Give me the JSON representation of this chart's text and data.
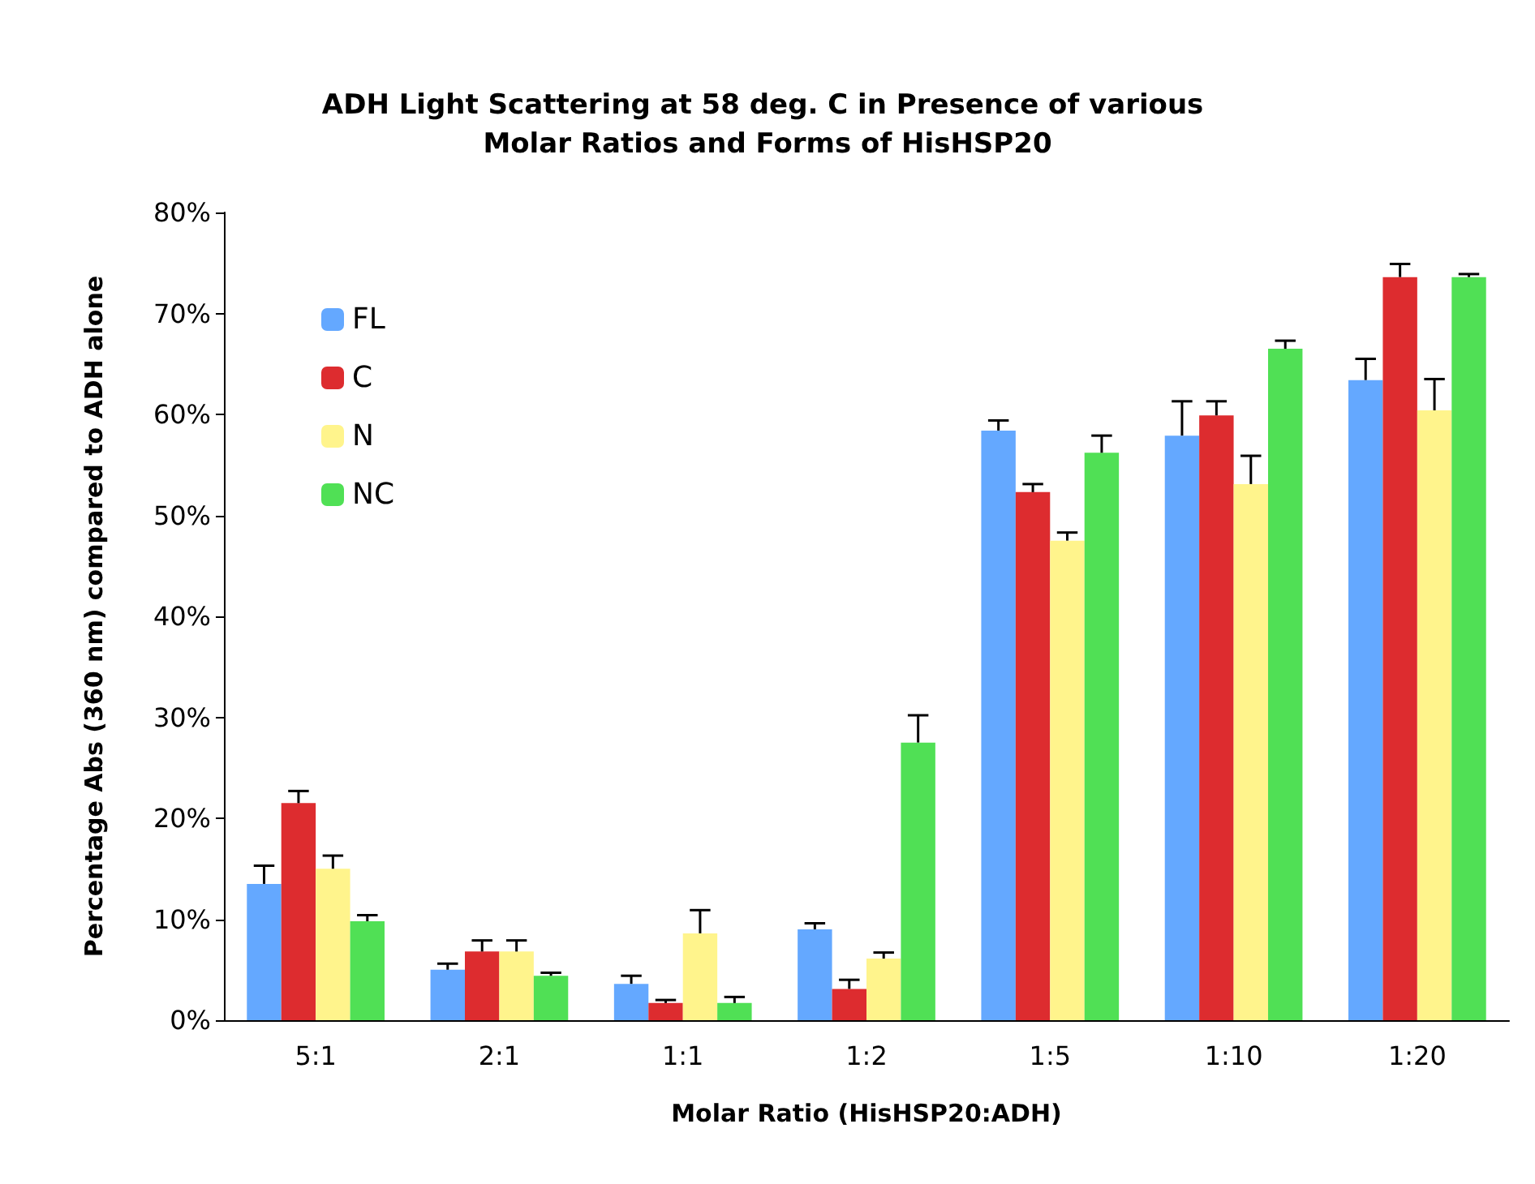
{
  "chart_data": {
    "type": "bar",
    "title": "ADH Light Scattering at 58 deg. C in Presence of various Molar Ratios and Forms of HisHSP20",
    "xlabel": "Molar Ratio (HisHSP20:ADH)",
    "ylabel": "Percentage Abs (360 nm) compared to ADH alone",
    "categories": [
      "5:1",
      "2:1",
      "1:1",
      "1:2",
      "1:5",
      "1:10",
      "1:20"
    ],
    "series": [
      {
        "name": "FL",
        "color": "#64a8ff",
        "values": [
          13.5,
          5.0,
          3.6,
          9.0,
          58.4,
          57.9,
          63.4
        ],
        "errors": [
          [
            13.5,
            15.3
          ],
          [
            5.0,
            5.6
          ],
          [
            3.6,
            4.4
          ],
          [
            9.0,
            9.6
          ],
          [
            58.4,
            59.4
          ],
          [
            57.9,
            61.3
          ],
          [
            63.4,
            65.5
          ]
        ]
      },
      {
        "name": "C",
        "color": "#dd2c2f",
        "values": [
          21.5,
          6.8,
          1.7,
          3.1,
          52.3,
          59.9,
          73.6
        ],
        "errors": [
          [
            21.5,
            22.7
          ],
          [
            6.8,
            7.9
          ],
          [
            1.7,
            2.0
          ],
          [
            3.1,
            4.0
          ],
          [
            52.3,
            53.1
          ],
          [
            59.9,
            61.3
          ],
          [
            73.6,
            74.9
          ]
        ]
      },
      {
        "name": "N",
        "color": "#fff48c",
        "values": [
          15.0,
          6.8,
          8.6,
          6.1,
          47.5,
          53.1,
          60.4
        ],
        "errors": [
          [
            15.0,
            16.3
          ],
          [
            6.8,
            7.9
          ],
          [
            8.6,
            10.9
          ],
          [
            6.1,
            6.7
          ],
          [
            47.5,
            48.3
          ],
          [
            53.1,
            55.9
          ],
          [
            60.4,
            63.5
          ]
        ]
      },
      {
        "name": "NC",
        "color": "#50e055",
        "values": [
          9.8,
          4.4,
          1.7,
          27.5,
          56.2,
          66.5,
          73.6
        ],
        "errors": [
          [
            9.8,
            10.4
          ],
          [
            4.4,
            4.7
          ],
          [
            1.7,
            2.3
          ],
          [
            27.5,
            30.2
          ],
          [
            56.2,
            57.9
          ],
          [
            66.5,
            67.3
          ],
          [
            73.6,
            73.9
          ]
        ]
      }
    ],
    "ylim": [
      0,
      80
    ],
    "yticks": [
      {
        "value": 0,
        "label": "0%"
      },
      {
        "value": 10,
        "label": "10%"
      },
      {
        "value": 20,
        "label": "20%"
      },
      {
        "value": 30,
        "label": "30%"
      },
      {
        "value": 40,
        "label": "40%"
      },
      {
        "value": 50,
        "label": "50%"
      },
      {
        "value": 60,
        "label": "60%"
      },
      {
        "value": 70,
        "label": "70%"
      },
      {
        "value": 80,
        "label": "80%"
      }
    ],
    "grid": false,
    "legend": "top left"
  }
}
